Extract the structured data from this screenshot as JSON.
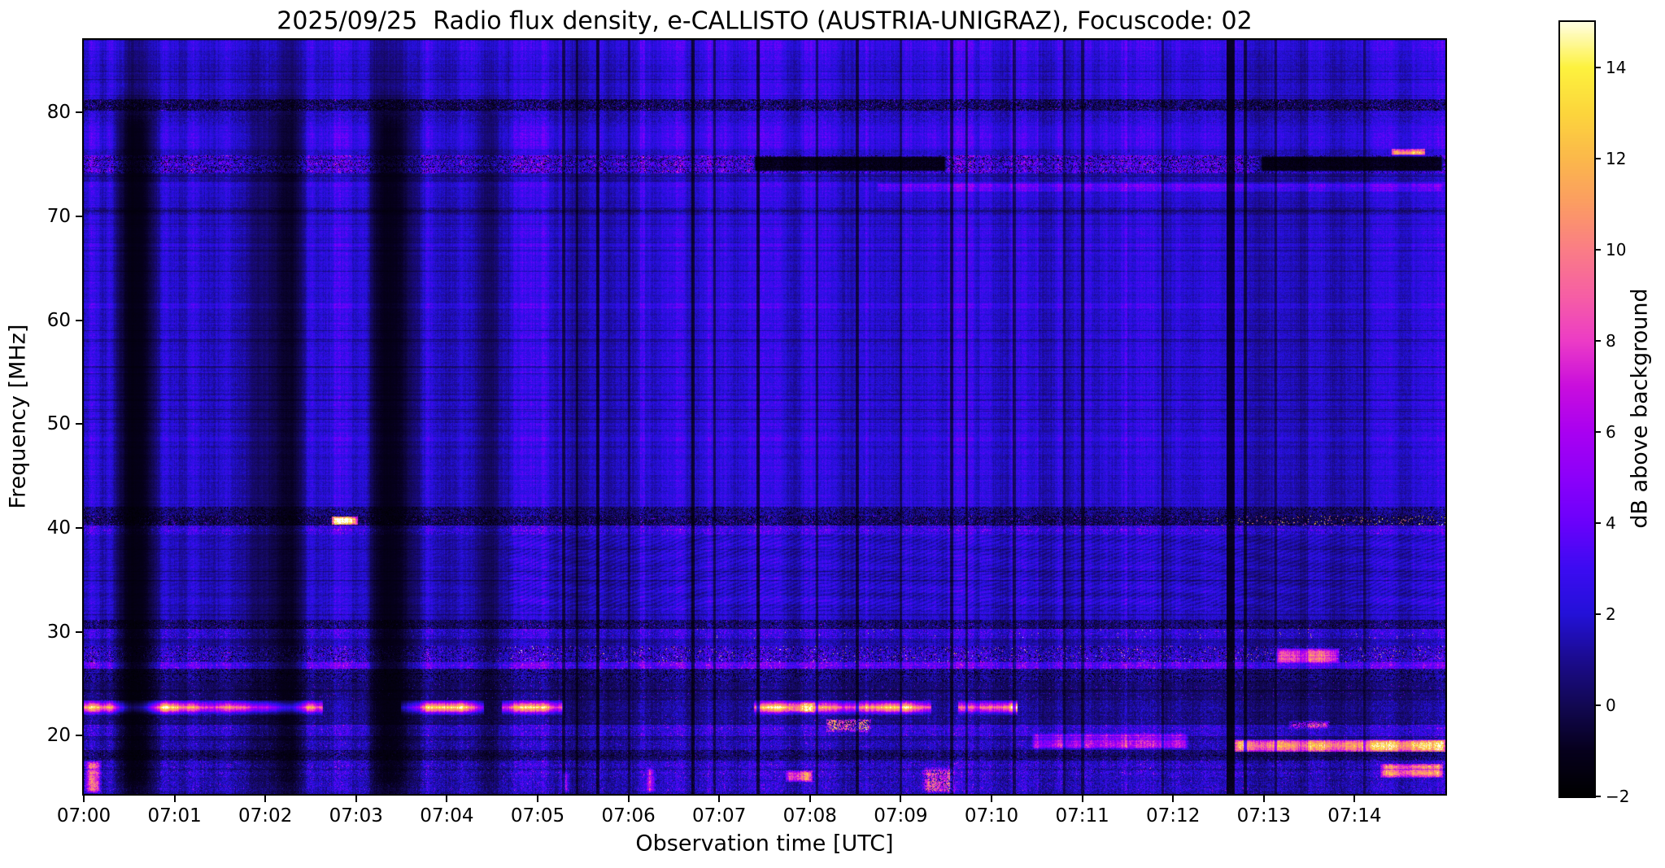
{
  "figure": {
    "title": "2025/09/25  Radio flux density, e-CALLISTO (AUSTRIA-UNIGRAZ), Focuscode: 02"
  },
  "chart_data": {
    "type": "heatmap",
    "title": "2025/09/25  Radio flux density, e-CALLISTO (AUSTRIA-UNIGRAZ), Focuscode: 02",
    "xlabel": "Observation time [UTC]",
    "ylabel": "Frequency [MHz]",
    "colorbar_label": "dB above background",
    "date": "2025/09/25",
    "instrument": "e-CALLISTO (AUSTRIA-UNIGRAZ)",
    "focuscode": "02",
    "x_tick_labels": [
      "07:00",
      "07:01",
      "07:02",
      "07:03",
      "07:04",
      "07:05",
      "07:06",
      "07:07",
      "07:08",
      "07:09",
      "07:10",
      "07:11",
      "07:12",
      "07:13",
      "07:14"
    ],
    "time_range_utc": [
      "07:00:00",
      "07:15:00"
    ],
    "y_tick_values": [
      20,
      30,
      40,
      50,
      60,
      70,
      80
    ],
    "freq_range_mhz": [
      14.4,
      87.0
    ],
    "colorbar_tick_labels": [
      "−2",
      "0",
      "2",
      "4",
      "6",
      "8",
      "10",
      "12",
      "14"
    ],
    "colorbar_tick_values": [
      -2,
      0,
      2,
      4,
      6,
      8,
      10,
      12,
      14
    ],
    "value_range_db": [
      -2,
      15
    ],
    "grid": false,
    "legend": false,
    "colormap_stops": [
      [
        -2.0,
        "#000000"
      ],
      [
        -1.0,
        "#06001d"
      ],
      [
        0.0,
        "#120853"
      ],
      [
        1.0,
        "#1b0b8f"
      ],
      [
        2.0,
        "#2311d8"
      ],
      [
        3.0,
        "#3c0bf2"
      ],
      [
        4.0,
        "#6a01fb"
      ],
      [
        5.0,
        "#8c00fa"
      ],
      [
        6.0,
        "#a900f1"
      ],
      [
        7.0,
        "#c90edd"
      ],
      [
        8.0,
        "#ec3cc6"
      ],
      [
        9.0,
        "#f65fa4"
      ],
      [
        10.0,
        "#fa7d86"
      ],
      [
        11.0,
        "#fb9c63"
      ],
      [
        12.0,
        "#fbb84b"
      ],
      [
        13.0,
        "#fcd53c"
      ],
      [
        14.0,
        "#fdf23e"
      ],
      [
        15.0,
        "#fffde0"
      ],
      [
        15.3,
        "#ffffff"
      ]
    ],
    "bands": [
      {
        "f": [
          86.0,
          87.2
        ],
        "base": 2.6,
        "amp": 0.5
      },
      {
        "f": [
          81.3,
          86.0
        ],
        "base": 1.95,
        "amp": 0.55
      },
      {
        "f": [
          80.2,
          81.3
        ],
        "base": 0.4,
        "amp": 1.1,
        "dark": 0.28,
        "speck": [
          0.05,
          3.2
        ]
      },
      {
        "f": [
          79.0,
          80.2
        ],
        "base": 1.7,
        "amp": 0.8
      },
      {
        "f": [
          76.5,
          79.0
        ],
        "base": 2.25,
        "amp": 0.55
      },
      {
        "f": [
          75.9,
          76.5
        ],
        "base": 1.5,
        "amp": 0.6
      },
      {
        "f": [
          74.2,
          75.9
        ],
        "base": 2.5,
        "amp": 1.7,
        "speck": [
          0.05,
          5.5
        ],
        "dark": 0.15
      },
      {
        "f": [
          73.3,
          74.2
        ],
        "base": 1.15,
        "amp": 0.6
      },
      {
        "f": [
          72.2,
          73.3
        ],
        "base": 2.0,
        "amp": 0.55
      },
      {
        "f": [
          70.9,
          72.2
        ],
        "base": 1.8,
        "amp": 0.5
      },
      {
        "f": [
          70.2,
          70.9
        ],
        "base": 0.9,
        "amp": 0.6
      },
      {
        "f": [
          67.5,
          70.2
        ],
        "base": 1.85,
        "amp": 0.5
      },
      {
        "f": [
          67.1,
          67.5
        ],
        "base": 2.7,
        "amp": 0.5
      },
      {
        "f": [
          61.6,
          67.1
        ],
        "base": 1.85,
        "amp": 0.5
      },
      {
        "f": [
          61.2,
          61.6
        ],
        "base": 2.6,
        "amp": 0.5
      },
      {
        "f": [
          48.8,
          61.2
        ],
        "base": 1.8,
        "amp": 0.55
      },
      {
        "f": [
          48.4,
          48.8
        ],
        "base": 2.5,
        "amp": 0.5
      },
      {
        "f": [
          42.0,
          48.4
        ],
        "base": 1.75,
        "amp": 0.55
      },
      {
        "f": [
          41.2,
          42.0
        ],
        "base": 0.7,
        "amp": 0.8,
        "dark": 0.2
      },
      {
        "f": [
          40.2,
          41.2
        ],
        "base": 0.35,
        "amp": 1.0,
        "dark": 0.3,
        "speck": [
          0.04,
          3.8
        ],
        "dots": [
          0.05,
          9.5,
          0.83,
          1.0
        ]
      },
      {
        "f": [
          39.4,
          40.2
        ],
        "base": 2.2,
        "amp": 1.2,
        "speck": [
          0.04,
          4.5
        ]
      },
      {
        "f": [
          32.0,
          39.4
        ],
        "base": 1.55,
        "amp": 0.5,
        "ripple": 1
      },
      {
        "f": [
          31.1,
          32.0
        ],
        "base": 1.5,
        "amp": 0.6
      },
      {
        "f": [
          30.3,
          31.1
        ],
        "base": 0.55,
        "amp": 0.9,
        "dark": 0.2,
        "speck": [
          0.03,
          3.5
        ]
      },
      {
        "f": [
          29.3,
          30.3
        ],
        "base": 1.9,
        "amp": 1.1,
        "speck": [
          0.04,
          4.0
        ],
        "dots": [
          0.006,
          9.0,
          0.45,
          1.0
        ]
      },
      {
        "f": [
          28.6,
          29.3
        ],
        "base": 1.1,
        "amp": 0.7
      },
      {
        "f": [
          27.1,
          28.6
        ],
        "base": 1.8,
        "amp": 1.3,
        "speck": [
          0.06,
          5.0
        ],
        "dots": [
          0.012,
          10.0,
          0.3,
          1.0
        ],
        "dark": 0.12
      },
      {
        "f": [
          26.4,
          27.1
        ],
        "base": 3.4,
        "amp": 1.2,
        "speck": [
          0.05,
          6.0
        ]
      },
      {
        "f": [
          25.2,
          26.4
        ],
        "base": 0.9,
        "amp": 0.9,
        "dark": 0.2
      },
      {
        "f": [
          23.4,
          25.2
        ],
        "base": 0.35,
        "amp": 0.7,
        "speck": [
          0.02,
          3.5
        ]
      },
      {
        "f": [
          22.0,
          23.4
        ],
        "base": 0.7,
        "amp": 0.8,
        "blob": 1
      },
      {
        "f": [
          21.0,
          22.0
        ],
        "base": 0.6,
        "amp": 0.8,
        "speck": [
          0.02,
          3.0
        ]
      },
      {
        "f": [
          19.9,
          21.0
        ],
        "base": 1.9,
        "amp": 1.2,
        "speck": [
          0.04,
          4.5
        ]
      },
      {
        "f": [
          18.6,
          19.9
        ],
        "base": 1.25,
        "amp": 1.0,
        "speck": [
          0.03,
          4.0
        ]
      },
      {
        "f": [
          17.6,
          18.6
        ],
        "base": 0.55,
        "amp": 0.8,
        "dark": 0.15,
        "speck": [
          0.02,
          3.5
        ]
      },
      {
        "f": [
          15.9,
          17.6
        ],
        "base": 1.7,
        "amp": 1.3,
        "speck": [
          0.04,
          4.5
        ]
      },
      {
        "f": [
          14.4,
          15.9
        ],
        "base": 1.45,
        "amp": 1.1,
        "speck": [
          0.03,
          4.0
        ]
      }
    ],
    "events": [
      {
        "name": "orange-dash-40.7MHz-0702.8",
        "t": [
          0.182,
          0.201
        ],
        "f": [
          40.3,
          41.1
        ],
        "v": 12,
        "mode": "max",
        "jit": 2
      },
      {
        "name": "orange-blip-76MHz-0714.5",
        "t": [
          0.96,
          0.985
        ],
        "f": [
          75.7,
          76.5
        ],
        "v": 11,
        "mode": "max",
        "jit": 1.5
      },
      {
        "name": "orange-dash-22.8MHz-0707.8",
        "t": [
          0.515,
          0.537
        ],
        "f": [
          22.2,
          23.2
        ],
        "v": 10.5,
        "mode": "max",
        "jit": 2
      },
      {
        "name": "yellow-cluster-21MHz-0708.2",
        "t": [
          0.545,
          0.578
        ],
        "f": [
          20.3,
          21.6
        ],
        "v": 9.5,
        "mode": "max",
        "jit": 2,
        "p": 0.55
      },
      {
        "name": "orange-blob-16MHz-0707.8",
        "t": [
          0.515,
          0.535
        ],
        "f": [
          15.5,
          16.6
        ],
        "v": 9,
        "mode": "max",
        "jit": 2
      },
      {
        "name": "pink-haze-19-20MHz-0710.5",
        "t": [
          0.695,
          0.812
        ],
        "f": [
          18.6,
          20.3
        ],
        "v": 5.5,
        "mode": "max",
        "jit": 1.5
      },
      {
        "name": "orange-streak-19MHz-0712.7-0715",
        "t": [
          0.845,
          1.0
        ],
        "f": [
          18.4,
          19.6
        ],
        "v": 11,
        "mode": "max",
        "jit": 2
      },
      {
        "name": "pink-blob-27.5MHz-0713.3",
        "t": [
          0.875,
          0.922
        ],
        "f": [
          26.9,
          28.4
        ],
        "v": 8.5,
        "mode": "max",
        "jit": 1.5
      },
      {
        "name": "orange-dots-21MHz-0713.4",
        "t": [
          0.885,
          0.915
        ],
        "f": [
          20.6,
          21.4
        ],
        "v": 8,
        "mode": "max",
        "jit": 1.5,
        "p": 0.6
      },
      {
        "name": "dark-patch-75MHz-0707.3-0709.5",
        "t": [
          0.49,
          0.635
        ],
        "f": [
          74.2,
          76.0
        ],
        "v": -1.2,
        "mode": "min"
      },
      {
        "name": "dark-patch-75MHz-0712.9",
        "t": [
          0.862,
          1.0
        ],
        "f": [
          74.2,
          76.0
        ],
        "v": -1.2,
        "mode": "min"
      },
      {
        "name": "bright-row-72.8MHz-right",
        "t": [
          0.58,
          1.0
        ],
        "f": [
          72.2,
          73.4
        ],
        "v": 3.3,
        "mode": "max",
        "jit": 0.8
      },
      {
        "name": "purple-streak-left-edge-bottom",
        "t": [
          0.0,
          0.013
        ],
        "f": [
          14.4,
          17.6
        ],
        "v": 7,
        "mode": "max",
        "jit": 2
      },
      {
        "name": "pink-column-0705.3-bottom",
        "t": [
          0.35,
          0.357
        ],
        "f": [
          14.4,
          16.5
        ],
        "v": 6,
        "mode": "max",
        "jit": 2
      },
      {
        "name": "pink-column-0706.2-bottom",
        "t": [
          0.412,
          0.42
        ],
        "f": [
          14.4,
          17.0
        ],
        "v": 6.5,
        "mode": "max",
        "jit": 2
      },
      {
        "name": "pink-column-0709.3-bottom",
        "t": [
          0.615,
          0.64
        ],
        "f": [
          14.4,
          17.0
        ],
        "v": 7,
        "mode": "max",
        "jit": 2,
        "p": 0.7
      },
      {
        "name": "orange-patch-bottom-0714.3",
        "t": [
          0.952,
          0.998
        ],
        "f": [
          15.9,
          17.3
        ],
        "v": 9,
        "mode": "max",
        "jit": 2
      }
    ],
    "vertical_dark_lines": [
      [
        0.352,
        2,
        0.45
      ],
      [
        0.362,
        1.5,
        0.5
      ],
      [
        0.377,
        2,
        0.35
      ],
      [
        0.4,
        1.5,
        0.55
      ],
      [
        0.447,
        2,
        0.4
      ],
      [
        0.463,
        1.5,
        0.5
      ],
      [
        0.495,
        2,
        0.35
      ],
      [
        0.538,
        1.5,
        0.5
      ],
      [
        0.568,
        2,
        0.45
      ],
      [
        0.6,
        1.5,
        0.55
      ],
      [
        0.637,
        2,
        0.4
      ],
      [
        0.648,
        1.5,
        0.5
      ],
      [
        0.683,
        2,
        0.45
      ],
      [
        0.72,
        1.5,
        0.5
      ],
      [
        0.733,
        2,
        0.45
      ],
      [
        0.792,
        1.5,
        0.55
      ],
      [
        0.842,
        5,
        0.25
      ],
      [
        0.853,
        2,
        0.4
      ],
      [
        0.875,
        1.5,
        0.55
      ],
      [
        0.94,
        1.5,
        0.6
      ]
    ],
    "vertical_bright_lines": [
      [
        0.41,
        3,
        1.22
      ],
      [
        0.575,
        2,
        1.18
      ],
      [
        0.66,
        3,
        1.15
      ],
      [
        0.7,
        2,
        1.18
      ],
      [
        0.765,
        2,
        1.18
      ],
      [
        0.9,
        2,
        1.15
      ]
    ],
    "left_banding": {
      "t_end": 0.345,
      "scale": 0.016,
      "threshold": 0.52,
      "min_gain": 0.07
    }
  }
}
